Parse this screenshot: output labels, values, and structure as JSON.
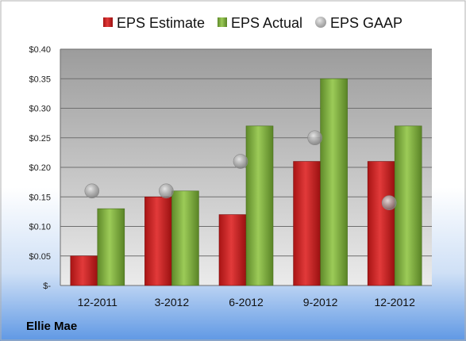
{
  "company": "Ellie Mae",
  "legend": {
    "estimate_label": "EPS Estimate",
    "actual_label": "EPS Actual",
    "gaap_label": "EPS GAAP"
  },
  "colors": {
    "estimate": "#d42a2a",
    "actual": "#8db84a",
    "gaap": "#a6a6a6",
    "background_top": "#ffffff",
    "background_bottom": "#6aa0e6",
    "plot_top": "#9e9e9e",
    "plot_bottom": "#e6e6e6"
  },
  "chart_data": {
    "type": "bar",
    "categories": [
      "12-2011",
      "3-2012",
      "6-2012",
      "9-2012",
      "12-2012"
    ],
    "series": [
      {
        "name": "EPS Estimate",
        "kind": "bar",
        "values": [
          0.05,
          0.15,
          0.12,
          0.21,
          0.21
        ]
      },
      {
        "name": "EPS Actual",
        "kind": "bar",
        "values": [
          0.13,
          0.16,
          0.27,
          0.35,
          0.27
        ]
      },
      {
        "name": "EPS GAAP",
        "kind": "marker",
        "values": [
          0.16,
          0.16,
          0.21,
          0.25,
          0.14
        ]
      }
    ],
    "yticks": [
      "$-",
      "$0.05",
      "$0.10",
      "$0.15",
      "$0.20",
      "$0.25",
      "$0.30",
      "$0.35",
      "$0.40"
    ],
    "ylim": [
      0,
      0.4
    ],
    "grid": true,
    "legend_position": "top"
  }
}
